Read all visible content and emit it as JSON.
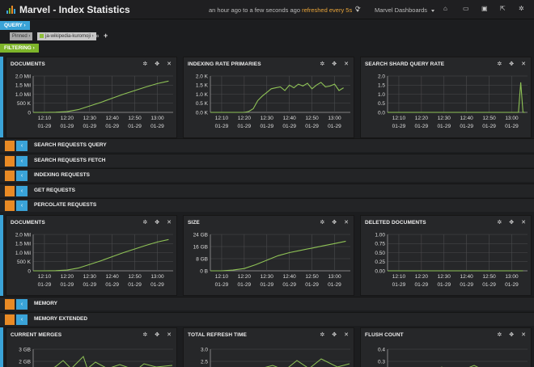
{
  "app": {
    "title": "Marvel - Index Statistics",
    "timerange": "an hour ago to a few seconds ago",
    "refresh": "refreshed every 5s",
    "dashboards_label": "Marvel Dashboards"
  },
  "query_bar": {
    "query_label": "QUERY ›",
    "filtering_label": "FILTERING ›",
    "tags": [
      "Pinned ›",
      "ja-wikipedia-kuromoji ›"
    ],
    "search_icon": "search-icon",
    "add_icon": "plus-icon"
  },
  "colors": {
    "accent_blue": "#3aa3d8",
    "accent_green": "#7eb52a",
    "accent_orange": "#e88a25",
    "series_line": "#8fc356"
  },
  "panel_icons": [
    "gear-icon",
    "move-icon",
    "close-icon"
  ],
  "rows": {
    "row1": {
      "panels": [
        {
          "title": "DOCUMENTS",
          "y_ticks": [
            "2.0 Mil",
            "1.5 Mil",
            "1.0 Mil",
            "500 K",
            "0"
          ],
          "x_ticks": [
            "12:10",
            "12:20",
            "12:30",
            "12:40",
            "12:50",
            "13:00"
          ],
          "x_ticks2": [
            "01-29",
            "01-29",
            "01-29",
            "01-29",
            "01-29",
            "01-29"
          ]
        },
        {
          "title": "INDEXING RATE PRIMARIES",
          "y_ticks": [
            "2.0 K",
            "1.5 K",
            "1.0 K",
            "0.5 K",
            "0.0 K"
          ],
          "x_ticks": [
            "12:10",
            "12:20",
            "12:30",
            "12:40",
            "12:50",
            "13:00"
          ],
          "x_ticks2": [
            "01-29",
            "01-29",
            "01-29",
            "01-29",
            "01-29",
            "01-29"
          ]
        },
        {
          "title": "SEARCH SHARD QUERY RATE",
          "y_ticks": [
            "2.0",
            "1.5",
            "1.0",
            "0.5",
            "0.0"
          ],
          "x_ticks": [
            "12:10",
            "12:20",
            "12:30",
            "12:40",
            "12:50",
            "13:00"
          ],
          "x_ticks2": [
            "01-29",
            "01-29",
            "01-29",
            "01-29",
            "01-29",
            "01-29"
          ]
        }
      ]
    },
    "collapsed1": [
      "SEARCH REQUESTS QUERY",
      "SEARCH REQUESTS FETCH",
      "INDEXING REQUESTS",
      "GET REQUESTS",
      "PERCOLATE REQUESTS"
    ],
    "row2": {
      "panels": [
        {
          "title": "DOCUMENTS",
          "y_ticks": [
            "2.0 Mil",
            "1.5 Mil",
            "1.0 Mil",
            "500 K",
            "0"
          ],
          "x_ticks": [
            "12:10",
            "12:20",
            "12:30",
            "12:40",
            "12:50",
            "13:00"
          ],
          "x_ticks2": [
            "01-29",
            "01-29",
            "01-29",
            "01-29",
            "01-29",
            "01-29"
          ]
        },
        {
          "title": "SIZE",
          "y_ticks": [
            "24 GB",
            "16 GB",
            "8 GB",
            "0 B"
          ],
          "x_ticks": [
            "12:10",
            "12:20",
            "12:30",
            "12:40",
            "12:50",
            "13:00"
          ],
          "x_ticks2": [
            "01-29",
            "01-29",
            "01-29",
            "01-29",
            "01-29",
            "01-29"
          ]
        },
        {
          "title": "DELETED DOCUMENTS",
          "y_ticks": [
            "1.00",
            "0.75",
            "0.50",
            "0.25",
            "0.00"
          ],
          "x_ticks": [
            "12:10",
            "12:20",
            "12:30",
            "12:40",
            "12:50",
            "13:00"
          ],
          "x_ticks2": [
            "01-29",
            "01-29",
            "01-29",
            "01-29",
            "01-29",
            "01-29"
          ]
        }
      ]
    },
    "collapsed2": [
      "MEMORY",
      "MEMORY EXTENDED"
    ],
    "row3": {
      "panels": [
        {
          "title": "CURRENT MERGES",
          "y_ticks": [
            "3 GB",
            "2 GB"
          ]
        },
        {
          "title": "TOTAL REFRESH TIME",
          "y_ticks": [
            "3.0",
            "2.5",
            "2.0"
          ]
        },
        {
          "title": "FLUSH COUNT",
          "y_ticks": [
            "0.4",
            "0.3"
          ]
        }
      ]
    }
  },
  "chart_data": [
    {
      "type": "line",
      "title": "DOCUMENTS",
      "x": [
        "12:05",
        "12:10",
        "12:15",
        "12:20",
        "12:25",
        "12:30",
        "12:35",
        "12:40",
        "12:45",
        "12:50",
        "12:55",
        "13:00",
        "13:05"
      ],
      "series": [
        {
          "values": [
            0.0,
            0.0,
            0.01,
            0.04,
            0.15,
            0.35,
            0.55,
            0.78,
            1.0,
            1.2,
            1.4,
            1.58,
            1.72
          ]
        }
      ],
      "ylim": [
        0,
        2.0
      ],
      "unit": "Mil"
    },
    {
      "type": "line",
      "title": "INDEXING RATE PRIMARIES",
      "x": [
        "12:05",
        "12:10",
        "12:15",
        "12:20",
        "12:22",
        "12:24",
        "12:26",
        "12:28",
        "12:30",
        "12:32",
        "12:34",
        "12:36",
        "12:38",
        "12:40",
        "12:42",
        "12:44",
        "12:46",
        "12:48",
        "12:50",
        "12:52",
        "12:54",
        "12:56",
        "12:58",
        "13:00",
        "13:02",
        "13:04"
      ],
      "series": [
        {
          "values": [
            0,
            0,
            0,
            0,
            0.05,
            0.2,
            0.65,
            0.9,
            1.1,
            1.3,
            1.35,
            1.4,
            1.2,
            1.5,
            1.35,
            1.55,
            1.45,
            1.6,
            1.3,
            1.5,
            1.65,
            1.4,
            1.45,
            1.55,
            1.2,
            1.35
          ]
        }
      ],
      "ylim": [
        0,
        2.0
      ],
      "unit": "K"
    },
    {
      "type": "line",
      "title": "SEARCH SHARD QUERY RATE",
      "x": [
        "12:05",
        "12:10",
        "12:20",
        "12:30",
        "12:40",
        "12:50",
        "13:00",
        "13:03",
        "13:04",
        "13:05",
        "13:06"
      ],
      "series": [
        {
          "values": [
            0,
            0,
            0,
            0,
            0,
            0,
            0,
            0,
            1.65,
            0,
            0
          ]
        }
      ],
      "ylim": [
        0,
        2.0
      ]
    },
    {
      "type": "line",
      "title": "DOCUMENTS",
      "x": [
        "12:05",
        "12:10",
        "12:15",
        "12:20",
        "12:25",
        "12:30",
        "12:35",
        "12:40",
        "12:45",
        "12:50",
        "12:55",
        "13:00",
        "13:05"
      ],
      "series": [
        {
          "values": [
            0.0,
            0.0,
            0.01,
            0.04,
            0.15,
            0.35,
            0.55,
            0.78,
            1.0,
            1.2,
            1.4,
            1.58,
            1.72
          ]
        }
      ],
      "ylim": [
        0,
        2.0
      ],
      "unit": "Mil"
    },
    {
      "type": "line",
      "title": "SIZE",
      "x": [
        "12:05",
        "12:10",
        "12:15",
        "12:20",
        "12:25",
        "12:30",
        "12:35",
        "12:40",
        "12:45",
        "12:50",
        "12:55",
        "13:00",
        "13:05"
      ],
      "series": [
        {
          "values": [
            0,
            0,
            0.5,
            1.5,
            4,
            7,
            10,
            12,
            13.5,
            15,
            16.5,
            18,
            19.5
          ]
        }
      ],
      "ylim": [
        0,
        24
      ],
      "unit": "GB"
    },
    {
      "type": "line",
      "title": "DELETED DOCUMENTS",
      "x": [
        "12:05",
        "13:05"
      ],
      "series": [
        {
          "values": [
            0,
            0
          ]
        }
      ],
      "ylim": [
        0,
        1.0
      ]
    }
  ]
}
